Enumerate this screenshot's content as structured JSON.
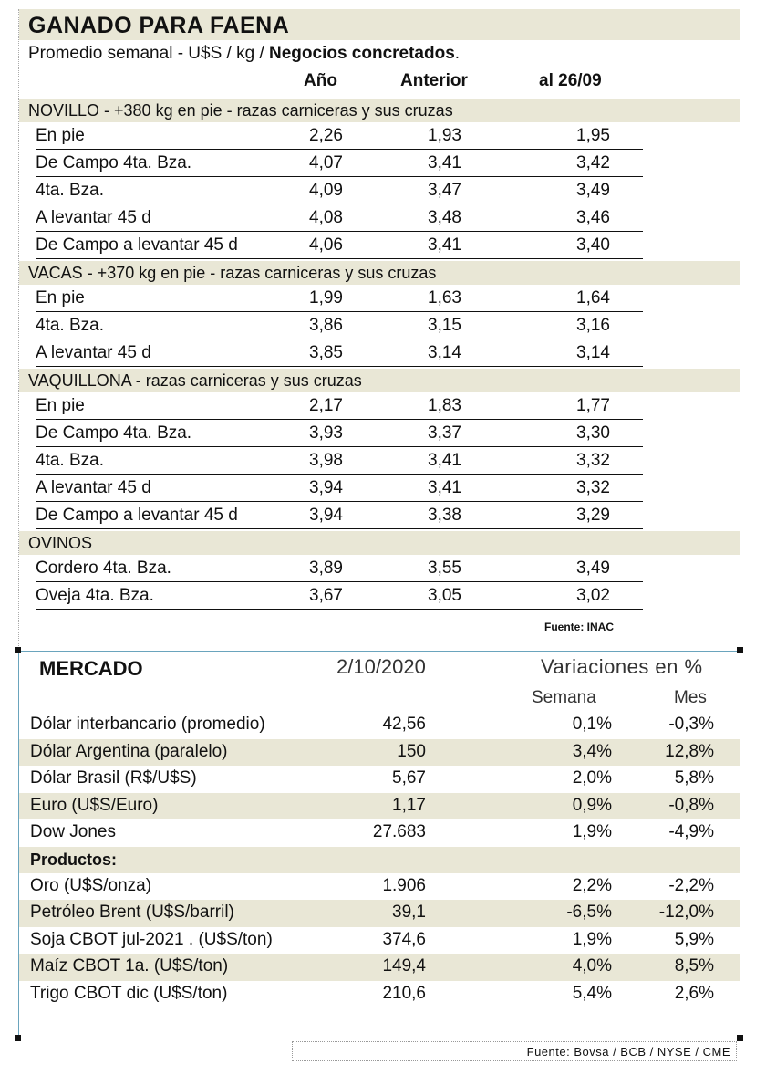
{
  "ganado": {
    "title": "GANADO PARA FAENA",
    "subtitle_plain": "Promedio semanal - U$S / kg / ",
    "subtitle_bold": "Negocios concretados",
    "subtitle_end": ".",
    "col_year": "Año",
    "col_prev": "Anterior",
    "col_date": "al 26/09",
    "novillo": {
      "category": "NOVILLO - +380 kg en pie - razas carniceras y sus cruzas",
      "rows": [
        [
          "En pie",
          "2,26",
          "1,93",
          "1,95"
        ],
        [
          "De Campo 4ta. Bza.",
          "4,07",
          "3,41",
          "3,42"
        ],
        [
          "4ta. Bza.",
          "4,09",
          "3,47",
          "3,49"
        ],
        [
          "A levantar 45 d",
          "4,08",
          "3,48",
          "3,46"
        ],
        [
          "De Campo a levantar 45 d",
          "4,06",
          "3,41",
          "3,40"
        ]
      ]
    },
    "vacas": {
      "category": "VACAS - +370 kg en pie - razas carniceras y sus cruzas",
      "rows": [
        [
          "En pie",
          "1,99",
          "1,63",
          "1,64"
        ],
        [
          "4ta. Bza.",
          "3,86",
          "3,15",
          "3,16"
        ],
        [
          "A levantar 45 d",
          "3,85",
          "3,14",
          "3,14"
        ]
      ]
    },
    "vaquillona": {
      "category": "VAQUILLONA - razas carniceras y sus cruzas",
      "rows": [
        [
          "En pie",
          "2,17",
          "1,83",
          "1,77"
        ],
        [
          "De Campo 4ta. Bza.",
          "3,93",
          "3,37",
          "3,30"
        ],
        [
          "4ta. Bza.",
          "3,98",
          "3,41",
          "3,32"
        ],
        [
          "A levantar 45 d",
          "3,94",
          "3,41",
          "3,32"
        ],
        [
          "De Campo a levantar 45 d",
          "3,94",
          "3,38",
          "3,29"
        ]
      ]
    },
    "ovinos": {
      "category": "OVINOS",
      "rows": [
        [
          "Cordero 4ta. Bza.",
          "3,89",
          "3,55",
          "3,49"
        ],
        [
          "Oveja 4ta. Bza.",
          "3,67",
          "3,05",
          "3,02"
        ]
      ]
    },
    "source": "Fuente: INAC"
  },
  "mercado": {
    "title": "MERCADO",
    "date": "2/10/2020",
    "variations": "Variaciones en %",
    "col_week": "Semana",
    "col_month": "Mes",
    "rows": [
      [
        "Dólar interbancario (promedio)",
        "42,56",
        "0,1%",
        "-0,3%"
      ],
      [
        "Dólar Argentina (paralelo)",
        "150",
        "3,4%",
        "12,8%"
      ],
      [
        "Dólar Brasil (R$/U$S)",
        "5,67",
        "2,0%",
        "5,8%"
      ],
      [
        "Euro (U$S/Euro)",
        "1,17",
        "0,9%",
        "-0,8%"
      ],
      [
        "Dow Jones",
        "27.683",
        "1,9%",
        "-4,9%"
      ]
    ],
    "products_label": "Productos:",
    "products": [
      [
        "Oro (U$S/onza)",
        "1.906",
        "2,2%",
        "-2,2%"
      ],
      [
        "Petróleo Brent (U$S/barril)",
        "39,1",
        "-6,5%",
        "-12,0%"
      ],
      [
        "Soja CBOT jul-2021 . (U$S/ton)",
        "374,6",
        "1,9%",
        "5,9%"
      ],
      [
        "Maíz CBOT 1a. (U$S/ton)",
        "149,4",
        "4,0%",
        "8,5%"
      ],
      [
        "Trigo CBOT dic (U$S/ton)",
        "210,6",
        "5,4%",
        "2,6%"
      ]
    ],
    "source": "Fuente: Bovsa / BCB / NYSE / CME"
  }
}
